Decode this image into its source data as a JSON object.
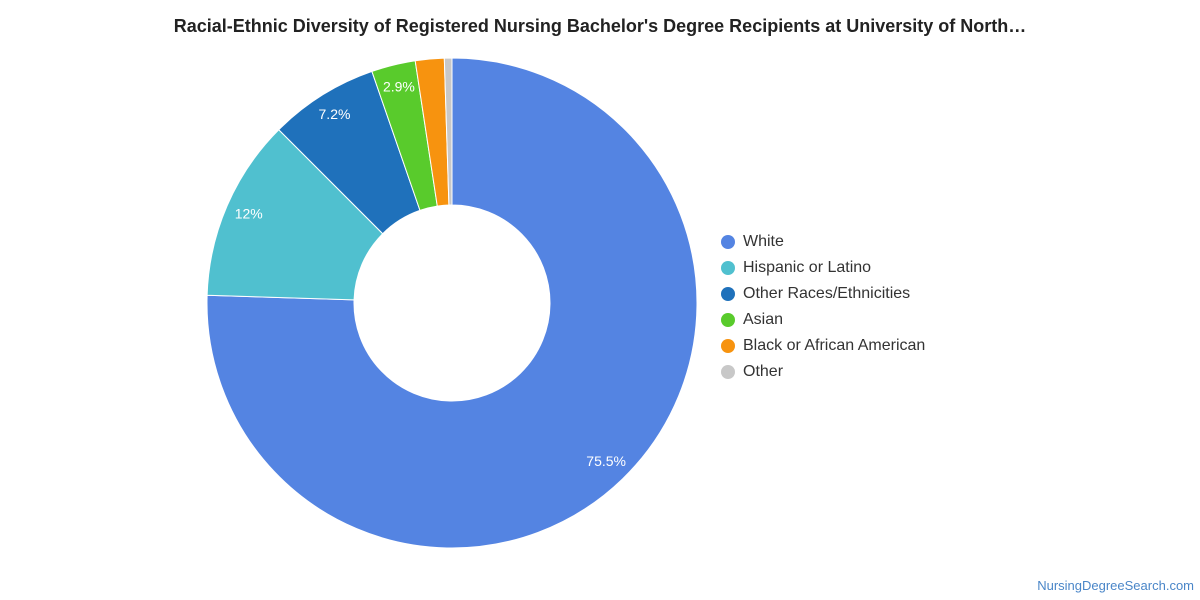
{
  "title": "Racial-Ethnic Diversity of Registered Nursing Bachelor's Degree Recipients at University of North…",
  "watermark": "NursingDegreeSearch.com",
  "chart_data": {
    "type": "pie",
    "variant": "donut",
    "title": "Racial-Ethnic Diversity of Registered Nursing Bachelor's Degree Recipients at University of North…",
    "legend_position": "right",
    "start": "top, clockwise",
    "slices": [
      {
        "name": "White",
        "value": 75.5,
        "label": "75.5%",
        "color": "#5484e2"
      },
      {
        "name": "Hispanic or Latino",
        "value": 12,
        "label": "12%",
        "color": "#50c0cf"
      },
      {
        "name": "Other Races/Ethnicities",
        "value": 7.2,
        "label": "7.2%",
        "color": "#1f71bb"
      },
      {
        "name": "Asian",
        "value": 2.9,
        "label": "2.9%",
        "color": "#59cb2c"
      },
      {
        "name": "Black or African American",
        "value": 1.9,
        "label": "",
        "color": "#f7930f"
      },
      {
        "name": "Other",
        "value": 0.5,
        "label": "",
        "color": "#c8c8c8"
      }
    ]
  }
}
